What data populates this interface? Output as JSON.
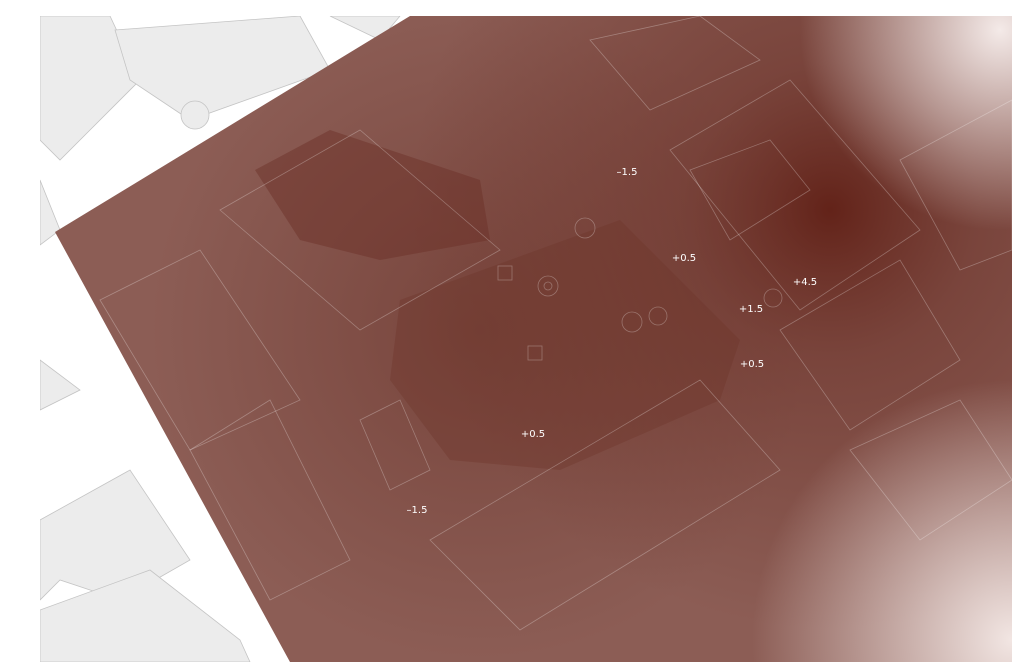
{
  "labels": [
    "–1.5",
    "+0.5",
    "+4.5",
    "+1.5",
    "+0.5",
    "+0.5",
    "–1.5"
  ]
}
